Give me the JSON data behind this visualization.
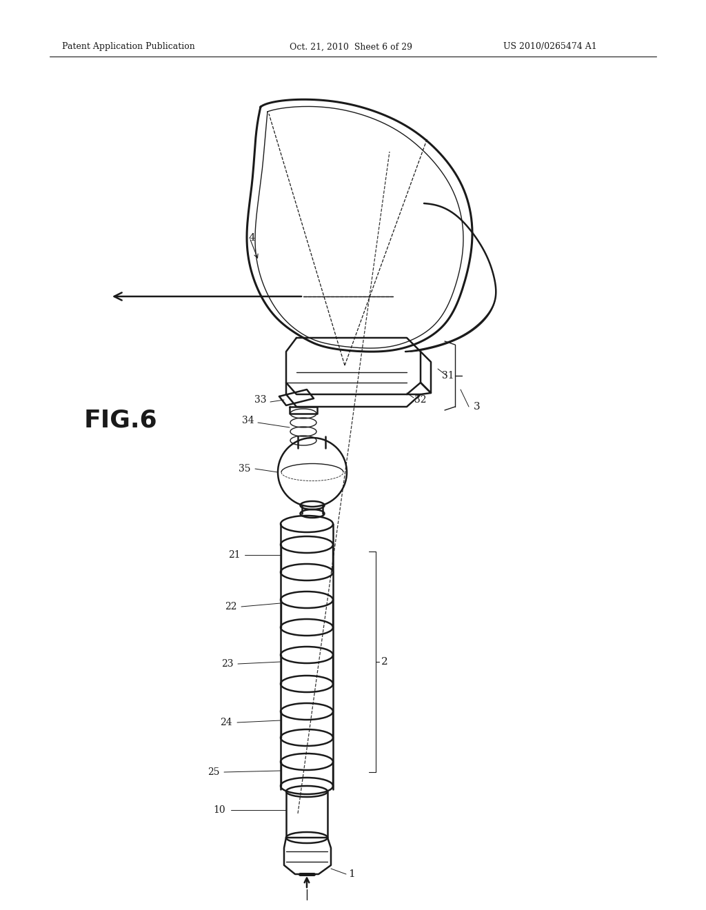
{
  "bg_color": "#ffffff",
  "line_color": "#1a1a1a",
  "header_left": "Patent Application Publication",
  "header_mid": "Oct. 21, 2010  Sheet 6 of 29",
  "header_right": "US 2010/0265474 A1",
  "fig_label": "FIG.6",
  "lw_main": 1.8,
  "lw_thin": 1.0,
  "lw_thick": 2.2
}
